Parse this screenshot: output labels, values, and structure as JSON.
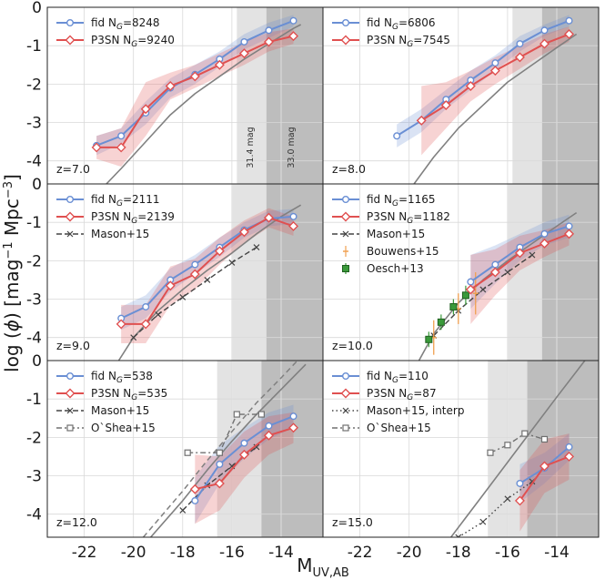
{
  "chart_data": {
    "type": "line",
    "xlabel": "M_UV,AB",
    "ylabel": "log (φ) [mag⁻¹ Mpc⁻³]",
    "xlim": [
      -23.5,
      -12.3
    ],
    "ylim": [
      -4.6,
      0
    ],
    "xticks": [
      -22,
      -20,
      -18,
      -16,
      -14
    ],
    "yticks": [
      0,
      -1,
      -2,
      -3,
      -4
    ],
    "grid": true,
    "colors": {
      "fid": "#6a8fd4",
      "p3sn": "#e05050",
      "fit": "#808080",
      "obs": "#444444",
      "bouwens": "#f0a050",
      "oesch": "#3a9a3a",
      "band_light": "#e3e3e3",
      "band_dark": "#bdbdbd"
    },
    "panels": [
      {
        "z_label": "z=7.0",
        "bands": {
          "light": [
            -15.8,
            -14.6
          ],
          "dark": [
            -14.6,
            -12.3
          ]
        },
        "band_labels": [
          "31.4 mag",
          "33.0 mag"
        ],
        "legend": [
          {
            "key": "fid",
            "label": "fid N",
            "sub": "G",
            "suffix": "=8248"
          },
          {
            "key": "p3sn",
            "label": "P3SN N",
            "sub": "G",
            "suffix": "=9240"
          }
        ],
        "series": [
          {
            "key": "fid",
            "x": [
              -21.5,
              -20.5,
              -19.5,
              -18.5,
              -17.5,
              -16.5,
              -15.5,
              -14.5,
              -13.5
            ],
            "y": [
              -3.6,
              -3.35,
              -2.75,
              -2.1,
              -1.75,
              -1.35,
              -0.9,
              -0.6,
              -0.35
            ],
            "band": [
              0.25,
              0.2,
              0.3,
              0.25,
              0.25,
              0.2,
              0.2,
              0.2,
              0.15
            ]
          },
          {
            "key": "p3sn",
            "x": [
              -21.5,
              -20.5,
              -19.5,
              -18.5,
              -17.5,
              -16.5,
              -15.5,
              -14.5,
              -13.5
            ],
            "y": [
              -3.65,
              -3.65,
              -2.65,
              -2.05,
              -1.8,
              -1.5,
              -1.2,
              -0.9,
              -0.75
            ],
            "band": [
              0.3,
              0.5,
              0.7,
              0.35,
              0.3,
              0.3,
              0.3,
              0.25,
              0.2
            ]
          },
          {
            "key": "fit",
            "x": [
              -21.1,
              -20.5,
              -19.5,
              -18.5,
              -17.5,
              -16.5,
              -15.5,
              -14.5,
              -13.5,
              -13.2
            ],
            "y": [
              -4.6,
              -4.2,
              -3.5,
              -2.8,
              -2.25,
              -1.8,
              -1.35,
              -0.95,
              -0.55,
              -0.45
            ]
          }
        ]
      },
      {
        "z_label": "z=8.0",
        "bands": {
          "light": [
            -15.8,
            -14.6
          ],
          "dark": [
            -14.6,
            -12.3
          ]
        },
        "legend": [
          {
            "key": "fid",
            "label": "fid N",
            "sub": "G",
            "suffix": "=6806"
          },
          {
            "key": "p3sn",
            "label": "P3SN N",
            "sub": "G",
            "suffix": "=7545"
          }
        ],
        "series": [
          {
            "key": "fid",
            "x": [
              -20.5,
              -19.5,
              -18.5,
              -17.5,
              -16.5,
              -15.5,
              -14.5,
              -13.5
            ],
            "y": [
              -3.35,
              -2.95,
              -2.4,
              -1.9,
              -1.45,
              -0.95,
              -0.6,
              -0.35
            ],
            "band": [
              0.3,
              0.3,
              0.25,
              0.25,
              0.2,
              0.2,
              0.15,
              0.15
            ]
          },
          {
            "key": "p3sn",
            "x": [
              -19.5,
              -18.5,
              -17.5,
              -16.5,
              -15.5,
              -14.5,
              -13.5
            ],
            "y": [
              -2.95,
              -2.55,
              -2.05,
              -1.65,
              -1.3,
              -0.95,
              -0.7
            ],
            "band": [
              0.9,
              0.6,
              0.4,
              0.35,
              0.3,
              0.25,
              0.2
            ]
          },
          {
            "key": "fit",
            "x": [
              -19.8,
              -19.0,
              -18.0,
              -17.0,
              -16.0,
              -15.0,
              -14.0,
              -13.2
            ],
            "y": [
              -4.6,
              -3.9,
              -3.15,
              -2.55,
              -1.95,
              -1.5,
              -1.05,
              -0.7
            ]
          }
        ]
      },
      {
        "z_label": "z=9.0",
        "bands": {
          "light": [
            -16.0,
            -14.6
          ],
          "dark": [
            -14.6,
            -12.3
          ]
        },
        "legend": [
          {
            "key": "fid",
            "label": "fid N",
            "sub": "G",
            "suffix": "=2111"
          },
          {
            "key": "p3sn",
            "label": "P3SN N",
            "sub": "G",
            "suffix": "=2139"
          },
          {
            "key": "mason",
            "label": "Mason+15",
            "sub": "",
            "suffix": ""
          }
        ],
        "series": [
          {
            "key": "fid",
            "x": [
              -20.5,
              -19.5,
              -18.5,
              -17.5,
              -16.5,
              -15.5,
              -14.5,
              -13.5
            ],
            "y": [
              -3.5,
              -3.2,
              -2.5,
              -2.1,
              -1.65,
              -1.2,
              -0.9,
              -0.85
            ],
            "band": [
              0.3,
              0.3,
              0.3,
              0.25,
              0.25,
              0.2,
              0.2,
              0.2
            ]
          },
          {
            "key": "p3sn",
            "x": [
              -20.5,
              -19.5,
              -18.5,
              -17.5,
              -16.5,
              -15.5,
              -14.5,
              -13.5
            ],
            "y": [
              -3.65,
              -3.65,
              -2.65,
              -2.35,
              -1.75,
              -1.25,
              -0.88,
              -1.1
            ],
            "band": [
              0.5,
              0.5,
              0.5,
              0.4,
              0.35,
              0.3,
              0.25,
              0.25
            ]
          },
          {
            "key": "fit",
            "x": [
              -20.6,
              -20.0,
              -19.0,
              -18.0,
              -17.0,
              -16.0,
              -15.0,
              -14.0,
              -13.2
            ],
            "y": [
              -4.6,
              -4.0,
              -3.3,
              -2.75,
              -2.25,
              -1.8,
              -1.3,
              -0.85,
              -0.55
            ]
          },
          {
            "key": "mason",
            "x": [
              -20.0,
              -19.0,
              -18.0,
              -17.0,
              -16.0,
              -15.0
            ],
            "y": [
              -4.0,
              -3.4,
              -2.95,
              -2.5,
              -2.05,
              -1.65
            ]
          }
        ]
      },
      {
        "z_label": "z=10.0",
        "bands": {
          "light": [
            -16.0,
            -14.6
          ],
          "dark": [
            -14.6,
            -12.3
          ]
        },
        "legend": [
          {
            "key": "fid",
            "label": "fid N",
            "sub": "G",
            "suffix": "=1165"
          },
          {
            "key": "p3sn",
            "label": "P3SN N",
            "sub": "G",
            "suffix": "=1182"
          },
          {
            "key": "mason",
            "label": "Mason+15",
            "sub": "",
            "suffix": ""
          },
          {
            "key": "bouwens",
            "label": "Bouwens+15",
            "sub": "",
            "suffix": ""
          },
          {
            "key": "oesch",
            "label": "Oesch+13",
            "sub": "",
            "suffix": ""
          }
        ],
        "series": [
          {
            "key": "fid",
            "x": [
              -17.5,
              -16.5,
              -15.5,
              -14.5,
              -13.5
            ],
            "y": [
              -2.55,
              -2.1,
              -1.65,
              -1.3,
              -1.1
            ],
            "band": [
              0.7,
              0.5,
              0.35,
              0.3,
              0.3
            ]
          },
          {
            "key": "p3sn",
            "x": [
              -17.5,
              -16.5,
              -15.5,
              -14.5,
              -13.5
            ],
            "y": [
              -2.75,
              -2.3,
              -1.8,
              -1.55,
              -1.3
            ],
            "band": [
              0.9,
              0.6,
              0.45,
              0.35,
              0.3
            ]
          },
          {
            "key": "fit",
            "x": [
              -19.6,
              -19.0,
              -18.0,
              -17.0,
              -16.0,
              -15.0,
              -14.0,
              -13.2
            ],
            "y": [
              -4.6,
              -3.9,
              -3.1,
              -2.5,
              -2.0,
              -1.55,
              -1.1,
              -0.75
            ]
          },
          {
            "key": "mason",
            "x": [
              -19.0,
              -18.0,
              -17.0,
              -16.0,
              -15.0
            ],
            "y": [
              -3.95,
              -3.3,
              -2.75,
              -2.3,
              -1.85
            ]
          },
          {
            "key": "bouwens",
            "x": [
              -19.0,
              -18.0,
              -17.3
            ],
            "y": [
              -4.0,
              -3.25,
              -2.85
            ],
            "err": [
              0.45,
              0.4,
              0.55
            ]
          },
          {
            "key": "oesch",
            "x": [
              -19.2,
              -18.7,
              -18.2,
              -17.7
            ],
            "y": [
              -4.05,
              -3.6,
              -3.2,
              -2.9
            ],
            "err": [
              0.2,
              0.2,
              0.2,
              0.25
            ]
          }
        ]
      },
      {
        "z_label": "z=12.0",
        "bands": {
          "light": [
            -16.6,
            -14.8
          ],
          "dark": [
            -14.8,
            -12.3
          ]
        },
        "legend": [
          {
            "key": "fid",
            "label": "fid N",
            "sub": "G",
            "suffix": "=538"
          },
          {
            "key": "p3sn",
            "label": "P3SN N",
            "sub": "G",
            "suffix": "=535"
          },
          {
            "key": "mason",
            "label": "Mason+15",
            "sub": "",
            "suffix": ""
          },
          {
            "key": "oshea",
            "label": "O`Shea+15",
            "sub": "",
            "suffix": ""
          }
        ],
        "series": [
          {
            "key": "fid",
            "x": [
              -17.5,
              -16.5,
              -15.5,
              -14.5,
              -13.5
            ],
            "y": [
              -3.65,
              -2.7,
              -2.15,
              -1.7,
              -1.45
            ],
            "band": [
              0.6,
              0.5,
              0.4,
              0.35,
              0.3
            ]
          },
          {
            "key": "p3sn",
            "x": [
              -17.5,
              -16.5,
              -15.5,
              -14.5,
              -13.5
            ],
            "y": [
              -3.35,
              -3.2,
              -2.45,
              -1.95,
              -1.75
            ],
            "band": [
              0.9,
              0.7,
              0.6,
              0.5,
              0.4
            ]
          },
          {
            "key": "fit",
            "x": [
              -19.3,
              -18.0,
              -17.0,
              -16.0,
              -15.0,
              -14.0,
              -13.0
            ],
            "y": [
              -4.6,
              -3.65,
              -2.85,
              -2.1,
              -1.4,
              -0.75,
              -0.1
            ]
          },
          {
            "key": "fit2",
            "x": [
              -19.6,
              -18.0,
              -17.0,
              -16.0,
              -15.0,
              -14.0,
              -12.6
            ],
            "y": [
              -4.6,
              -3.4,
              -2.6,
              -1.85,
              -1.1,
              -0.45,
              0.5
            ]
          },
          {
            "key": "mason",
            "x": [
              -18.0,
              -17.0,
              -16.0,
              -15.0
            ],
            "y": [
              -3.9,
              -3.25,
              -2.75,
              -2.25
            ]
          },
          {
            "key": "oshea",
            "x": [
              -17.8,
              -16.5,
              -15.8,
              -14.8
            ],
            "y": [
              -2.4,
              -2.4,
              -1.4,
              -1.4
            ]
          }
        ]
      },
      {
        "z_label": "z=15.0",
        "bands": {
          "light": [
            -16.8,
            -15.2
          ],
          "dark": [
            -15.2,
            -12.3
          ]
        },
        "legend": [
          {
            "key": "fid",
            "label": "fid N",
            "sub": "G",
            "suffix": "=110"
          },
          {
            "key": "p3sn",
            "label": "P3SN N",
            "sub": "G",
            "suffix": "=87"
          },
          {
            "key": "mason_interp",
            "label": "Mason+15, interp",
            "sub": "",
            "suffix": ""
          },
          {
            "key": "oshea",
            "label": "O`Shea+15",
            "sub": "",
            "suffix": ""
          }
        ],
        "series": [
          {
            "key": "fid",
            "x": [
              -15.5,
              -14.5,
              -13.5
            ],
            "y": [
              -3.2,
              -2.8,
              -2.25
            ],
            "band": [
              0.5,
              0.4,
              0.35
            ]
          },
          {
            "key": "p3sn",
            "x": [
              -15.5,
              -14.5,
              -13.5
            ],
            "y": [
              -3.65,
              -2.75,
              -2.5
            ],
            "band": [
              0.8,
              0.7,
              0.6
            ]
          },
          {
            "key": "fit",
            "x": [
              -18.3,
              -17.0,
              -16.0,
              -15.0,
              -14.0,
              -12.8
            ],
            "y": [
              -4.6,
              -3.5,
              -2.65,
              -1.8,
              -0.95,
              0.05
            ]
          },
          {
            "key": "mason_interp",
            "x": [
              -18.0,
              -17.0,
              -16.0,
              -15.0
            ],
            "y": [
              -4.6,
              -4.2,
              -3.6,
              -3.15
            ]
          },
          {
            "key": "oshea",
            "x": [
              -16.7,
              -16.0,
              -15.3,
              -14.5
            ],
            "y": [
              -2.4,
              -2.2,
              -1.9,
              -2.05
            ]
          }
        ]
      }
    ]
  }
}
